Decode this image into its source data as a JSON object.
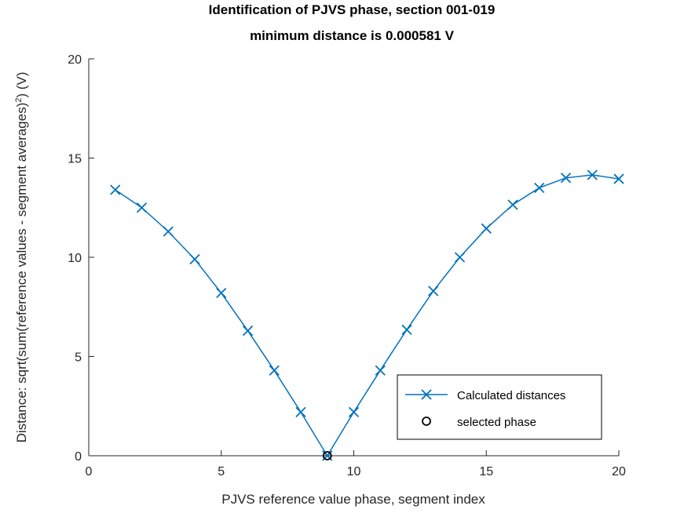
{
  "chart_data": {
    "type": "line",
    "title": [
      "Identification of PJVS phase, section 001-019",
      "minimum distance is 0.000581 V"
    ],
    "xlabel": "PJVS reference value phase, segment index",
    "ylabel_pre": "Distance: sqrt(sum(reference values - segment averages)",
    "ylabel_sup": "2",
    "ylabel_post": ") (V)",
    "xlim": [
      0,
      20
    ],
    "ylim": [
      0,
      20
    ],
    "xticks": [
      0,
      5,
      10,
      15,
      20
    ],
    "yticks": [
      0,
      5,
      10,
      15,
      20
    ],
    "grid": false,
    "legend_position": "bottom-right",
    "series": [
      {
        "name": "Calculated distances",
        "marker": "x",
        "color": "#0072BD",
        "x": [
          1,
          2,
          3,
          4,
          5,
          6,
          7,
          8,
          9,
          10,
          11,
          12,
          13,
          14,
          15,
          16,
          17,
          18,
          19,
          20
        ],
        "y": [
          13.4,
          12.5,
          11.3,
          9.9,
          8.2,
          6.3,
          4.3,
          2.2,
          0.000581,
          2.2,
          4.3,
          6.35,
          8.3,
          10.0,
          11.45,
          12.65,
          13.5,
          14.0,
          14.15,
          13.95
        ]
      },
      {
        "name": "selected phase",
        "marker": "o",
        "color": "#000000",
        "x": [
          9
        ],
        "y": [
          0.000581
        ]
      }
    ]
  }
}
